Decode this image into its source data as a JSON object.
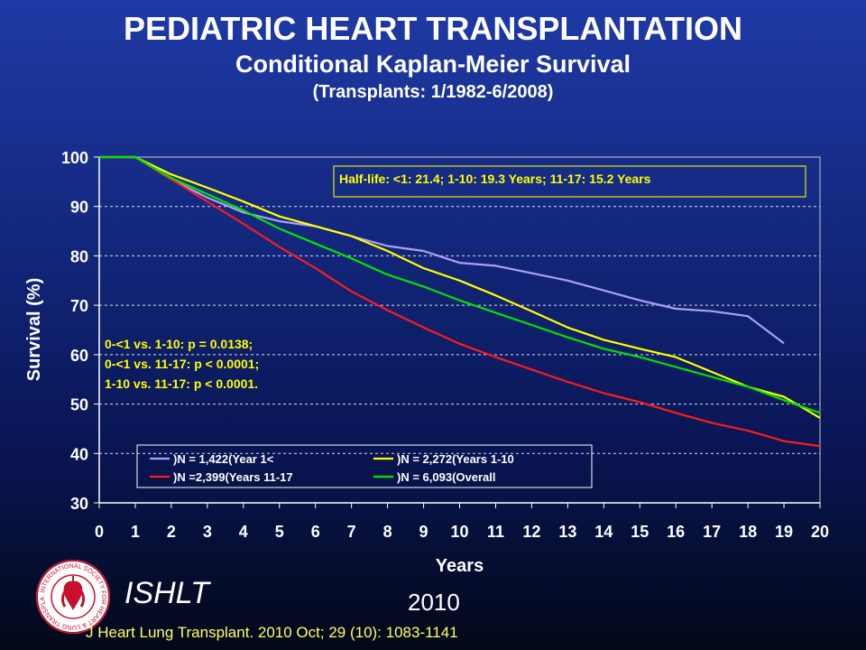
{
  "header": {
    "title": "PEDIATRIC HEART TRANSPLANTATION",
    "subtitle": "Conditional Kaplan-Meier Survival",
    "subtitle2": "(Transplants: 1/1982-6/2008)"
  },
  "chart_data": {
    "type": "line",
    "xlabel": "Years",
    "ylabel": "Survival (%)",
    "xlim": [
      0,
      20
    ],
    "ylim": [
      30,
      100
    ],
    "x_ticks": [
      "0",
      "1",
      "2",
      "3",
      "4",
      "5",
      "6",
      "7",
      "8",
      "9",
      "10",
      "11",
      "12",
      "13",
      "14",
      "15",
      "16",
      "17",
      "18",
      "19",
      "20"
    ],
    "y_ticks": [
      "30",
      "40",
      "50",
      "60",
      "70",
      "80",
      "90",
      "100"
    ],
    "grid": "horizontal dashed",
    "half_life_note": "Half-life: <1: 21.4; 1-10: 19.3 Years; 11-17: 15.2 Years",
    "pvalue_notes": [
      "0-<1 vs. 1-10: p = 0.0138;",
      "0-<1 vs. 11-17: p < 0.0001;",
      "1-10 vs. 11-17: p < 0.0001."
    ],
    "legend_position": "bottom",
    "series": [
      {
        "name": ")N = 1,422(Year 1<",
        "color": "#a9a2f2",
        "x": [
          0,
          1,
          2,
          3,
          4,
          5,
          6,
          7,
          8,
          9,
          10,
          11,
          12,
          13,
          14,
          15,
          16,
          17,
          18,
          19
        ],
        "values": [
          100,
          100,
          95.5,
          91.8,
          88.8,
          87,
          86,
          84,
          82,
          81,
          78.6,
          78,
          76.5,
          75,
          73,
          71,
          69.3,
          68.8,
          67.8,
          62.3
        ]
      },
      {
        "name": ")N = 2,272(Years 1-10",
        "color": "#ffff00",
        "x": [
          0,
          1,
          2,
          3,
          4,
          5,
          6,
          7,
          8,
          9,
          10,
          11,
          12,
          13,
          14,
          15,
          16,
          17,
          18,
          19,
          20
        ],
        "values": [
          100,
          100,
          96.5,
          93.8,
          91,
          88,
          86,
          84,
          81,
          77.5,
          75,
          72,
          68.8,
          65.5,
          63,
          61.2,
          59.5,
          56.5,
          53.5,
          51.5,
          47.2
        ]
      },
      {
        "name": ")N =2,399(Years 11-17",
        "color": "#ff1a1a",
        "x": [
          0,
          1,
          2,
          3,
          4,
          5,
          6,
          7,
          8,
          9,
          10,
          11,
          12,
          13,
          14,
          15,
          16,
          17,
          18,
          19,
          20
        ],
        "values": [
          100,
          100,
          95.5,
          91,
          86.5,
          81.8,
          77.5,
          72.8,
          69,
          65.5,
          62.2,
          59.5,
          57,
          54.5,
          52.2,
          50.4,
          48.2,
          46.2,
          44.6,
          42.5,
          41.5
        ]
      },
      {
        "name": ")N = 6,093(Overall",
        "color": "#00e400",
        "x": [
          0,
          1,
          2,
          3,
          4,
          5,
          6,
          7,
          8,
          9,
          10,
          11,
          12,
          13,
          14,
          15,
          16,
          17,
          18,
          19,
          20
        ],
        "values": [
          100,
          100,
          95.8,
          92.5,
          89.2,
          85.5,
          82.5,
          79.5,
          76.2,
          73.8,
          71,
          68.5,
          66,
          63.5,
          61.2,
          59.5,
          57.5,
          55.5,
          53.5,
          50.8,
          48.2
        ]
      }
    ]
  },
  "footer": {
    "org": "ISHLT",
    "year": "2010",
    "citation": "J Heart Lung Transplant. 2010 Oct; 29 (10): 1083-1141"
  },
  "logo": {
    "ring_text": "INTERNATIONAL SOCIETY FOR HEART & LUNG TRANSPLANTATION"
  }
}
